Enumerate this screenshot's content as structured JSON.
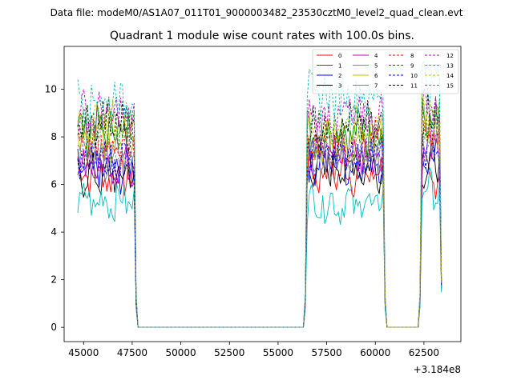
{
  "chart_data": {
    "type": "line",
    "suptitle": "Data file: modeM0/AS1A07_011T01_9000003482_23530cztM0_level2_quad_clean.evt",
    "title": "Quadrant 1 module wise count rates with 100.0s bins.",
    "xlabel": "",
    "ylabel": "",
    "x_offset_label": "+3.184e8",
    "xlim": [
      44000,
      64400
    ],
    "ylim": [
      -0.6,
      11.8
    ],
    "x_ticks": [
      45000,
      47500,
      50000,
      52500,
      55000,
      57500,
      60000,
      62500
    ],
    "x_tick_labels": [
      "45000",
      "47500",
      "50000",
      "52500",
      "55000",
      "57500",
      "60000",
      "62500"
    ],
    "y_ticks": [
      0,
      2,
      4,
      6,
      8,
      10
    ],
    "y_tick_labels": [
      "0",
      "2",
      "4",
      "6",
      "8",
      "10"
    ],
    "segments": [
      {
        "start": 44700,
        "end": 47700,
        "bins": 31
      },
      {
        "start": 56400,
        "end": 60500,
        "bins": 42
      },
      {
        "start": 62300,
        "end": 63400,
        "bins": 12
      }
    ],
    "series": [
      {
        "name": "0",
        "color": "#ff0000",
        "style": "solid",
        "level": [
          6.4,
          6.5,
          6.3
        ]
      },
      {
        "name": "1",
        "color": "#008000",
        "style": "solid",
        "level": [
          8.3,
          8.2,
          8.6
        ]
      },
      {
        "name": "2",
        "color": "#0000ff",
        "style": "solid",
        "level": [
          6.6,
          6.9,
          7.2
        ]
      },
      {
        "name": "3",
        "color": "#000000",
        "style": "solid",
        "level": [
          6.4,
          6.7,
          6.8
        ]
      },
      {
        "name": "4",
        "color": "#bf00bf",
        "style": "solid",
        "level": [
          6.9,
          7.3,
          7.4
        ]
      },
      {
        "name": "5",
        "color": "#00bfbf",
        "style": "solid",
        "level": [
          5.3,
          5.2,
          5.8
        ]
      },
      {
        "name": "6",
        "color": "#bfbf00",
        "style": "solid",
        "level": [
          7.8,
          7.7,
          8.3
        ]
      },
      {
        "name": "7",
        "color": "#808080",
        "style": "solid",
        "level": [
          7.2,
          7.0,
          7.6
        ]
      },
      {
        "name": "8",
        "color": "#ff0000",
        "style": "dashed",
        "level": [
          7.6,
          7.7,
          8.0
        ]
      },
      {
        "name": "9",
        "color": "#008000",
        "style": "dashed",
        "level": [
          8.6,
          8.3,
          9.0
        ]
      },
      {
        "name": "10",
        "color": "#0000ff",
        "style": "dashed",
        "level": [
          7.0,
          7.4,
          7.6
        ]
      },
      {
        "name": "11",
        "color": "#000000",
        "style": "dashed",
        "level": [
          8.5,
          8.4,
          8.9
        ]
      },
      {
        "name": "12",
        "color": "#bf00bf",
        "style": "dashed",
        "level": [
          8.9,
          8.8,
          9.3
        ]
      },
      {
        "name": "13",
        "color": "#00bfbf",
        "style": "dashed",
        "level": [
          9.6,
          9.7,
          10.4
        ]
      },
      {
        "name": "14",
        "color": "#bfbf00",
        "style": "dashed",
        "level": [
          8.5,
          8.3,
          9.0
        ]
      },
      {
        "name": "15",
        "color": "#808080",
        "style": "dashed",
        "level": [
          7.4,
          7.5,
          8.0
        ]
      }
    ],
    "legend_position": "top-right"
  }
}
